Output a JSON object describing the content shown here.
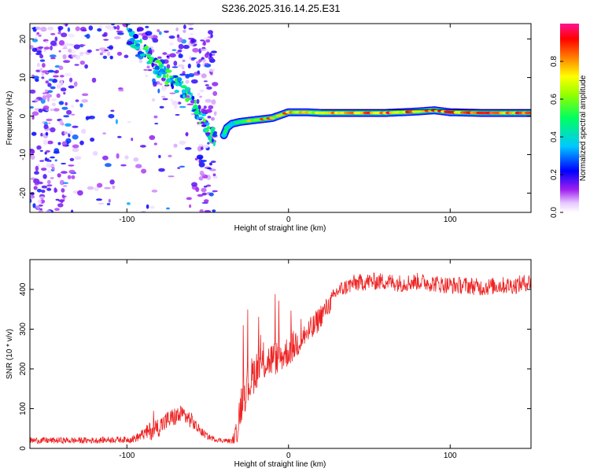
{
  "figure": {
    "title": "S236.2025.316.14.25.E31"
  },
  "chart_data": [
    {
      "type": "heatmap",
      "title": "",
      "xlabel": "Height of straight line (km)",
      "ylabel": "Frequency (Hz)",
      "xlim": [
        -160,
        150
      ],
      "ylim": [
        -25,
        24
      ],
      "xticks": [
        -100,
        0,
        100
      ],
      "yticks": [
        -20,
        -10,
        0,
        10,
        20
      ],
      "xtick_labels": [
        "-100",
        "0",
        "100"
      ],
      "ytick_labels": [
        "-20",
        "-10",
        "0",
        "10",
        "20"
      ],
      "colorbar": {
        "label": "Normalized spectral amplitude",
        "range": [
          0,
          1
        ],
        "ticks": [
          0.0,
          0.2,
          0.4,
          0.6,
          0.8
        ],
        "tick_labels": [
          "0.0",
          "0.2",
          "0.4",
          "0.6",
          "0.8"
        ],
        "colors": [
          "#ffffff",
          "#d9a6ff",
          "#a020f0",
          "#0000ff",
          "#00c8ff",
          "#00ff80",
          "#80ff00",
          "#ffff00",
          "#ff8000",
          "#ff0000",
          "#ff1493"
        ]
      },
      "noise_region": {
        "x_range": [
          -160,
          -45
        ],
        "amplitude_range": [
          0.02,
          0.35
        ]
      },
      "diagonal_feature": {
        "points": [
          [
            -100,
            21
          ],
          [
            -92,
            18
          ],
          [
            -85,
            15
          ],
          [
            -78,
            11
          ],
          [
            -72,
            9
          ],
          [
            -65,
            7
          ],
          [
            -60,
            4
          ],
          [
            -52,
            -2
          ],
          [
            -45,
            -6
          ]
        ],
        "peak_amplitude": 0.45
      },
      "carrier_line": {
        "points": [
          [
            -40,
            -5
          ],
          [
            -38,
            -3
          ],
          [
            -35,
            -2
          ],
          [
            -30,
            -1.5
          ],
          [
            -20,
            -1
          ],
          [
            -10,
            -0.5
          ],
          [
            0,
            1
          ],
          [
            10,
            1
          ],
          [
            20,
            0.8
          ],
          [
            40,
            0.8
          ],
          [
            60,
            0.8
          ],
          [
            80,
            1.2
          ],
          [
            90,
            1.5
          ],
          [
            100,
            1
          ],
          [
            120,
            0.8
          ],
          [
            150,
            0.8
          ]
        ],
        "core_amplitude": 0.95,
        "halo_amplitude": 0.3
      }
    },
    {
      "type": "line",
      "title": "",
      "xlabel": "Height of straight line (km)",
      "ylabel": "SNR (10 * v/v)",
      "xlim": [
        -160,
        150
      ],
      "ylim": [
        0,
        475
      ],
      "xticks": [
        -100,
        0,
        100
      ],
      "yticks": [
        0,
        100,
        200,
        300,
        400
      ],
      "xtick_labels": [
        "-100",
        "0",
        "100"
      ],
      "ytick_labels": [
        "0",
        "100",
        "200",
        "300",
        "400"
      ],
      "line_color": "#ee2222",
      "series": [
        {
          "name": "SNR",
          "x": [
            -160,
            -150,
            -140,
            -130,
            -120,
            -110,
            -100,
            -95,
            -90,
            -85,
            -80,
            -75,
            -70,
            -65,
            -60,
            -55,
            -50,
            -45,
            -40,
            -35,
            -32,
            -30,
            -28,
            -25,
            -20,
            -15,
            -10,
            -5,
            0,
            5,
            10,
            15,
            20,
            25,
            30,
            40,
            50,
            60,
            70,
            80,
            90,
            100,
            110,
            120,
            130,
            140,
            150
          ],
          "y": [
            20,
            20,
            20,
            20,
            20,
            22,
            22,
            25,
            35,
            45,
            55,
            70,
            80,
            85,
            70,
            45,
            30,
            22,
            20,
            18,
            40,
            100,
            140,
            160,
            200,
            215,
            225,
            230,
            245,
            265,
            285,
            300,
            335,
            360,
            395,
            415,
            420,
            420,
            415,
            420,
            415,
            410,
            410,
            405,
            410,
            410,
            420
          ],
          "noise": [
            8,
            8,
            8,
            8,
            8,
            8,
            8,
            10,
            15,
            25,
            25,
            25,
            25,
            25,
            20,
            12,
            8,
            6,
            6,
            6,
            30,
            50,
            55,
            55,
            50,
            45,
            45,
            40,
            40,
            40,
            35,
            35,
            30,
            25,
            20,
            22,
            22,
            22,
            22,
            22,
            22,
            22,
            22,
            22,
            22,
            22,
            22
          ]
        }
      ]
    }
  ]
}
